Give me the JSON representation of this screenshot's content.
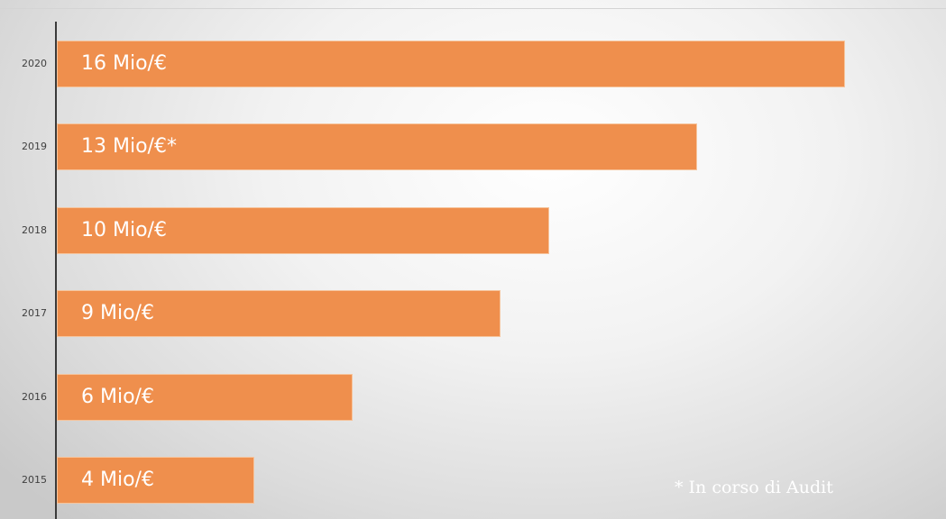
{
  "chart_data": {
    "type": "bar",
    "orientation": "horizontal",
    "categories": [
      "2020",
      "2019",
      "2018",
      "2017",
      "2016",
      "2015"
    ],
    "values": [
      16,
      13,
      10,
      9,
      6,
      4
    ],
    "data_labels": [
      "16 Mio/€",
      "13 Mio/€*",
      "10 Mio/€",
      "9 Mio/€",
      "6 Mio/€",
      "4 Mio/€"
    ],
    "xlim": [
      0,
      16
    ],
    "grid": false,
    "legend": "none",
    "annotation": "* In corso di Audit"
  },
  "colors": {
    "bar": "#ef8f4d",
    "axis": "#3a3a3a",
    "label": "#ffffff"
  }
}
